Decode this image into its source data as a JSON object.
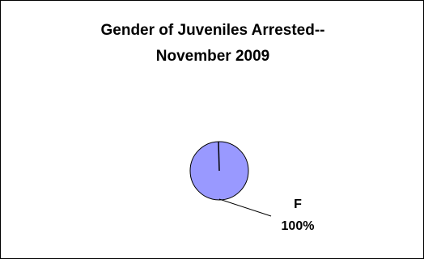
{
  "chart_data": {
    "type": "pie",
    "title_lines": [
      "Gender of Juveniles Arrested--",
      "November 2009"
    ],
    "slices": [
      {
        "category": "F",
        "value": 100,
        "percent_label": "100%",
        "color": "#9999FF"
      }
    ],
    "slice_outline_color": "#000000",
    "leader_line_color": "#000000",
    "legend": false
  }
}
